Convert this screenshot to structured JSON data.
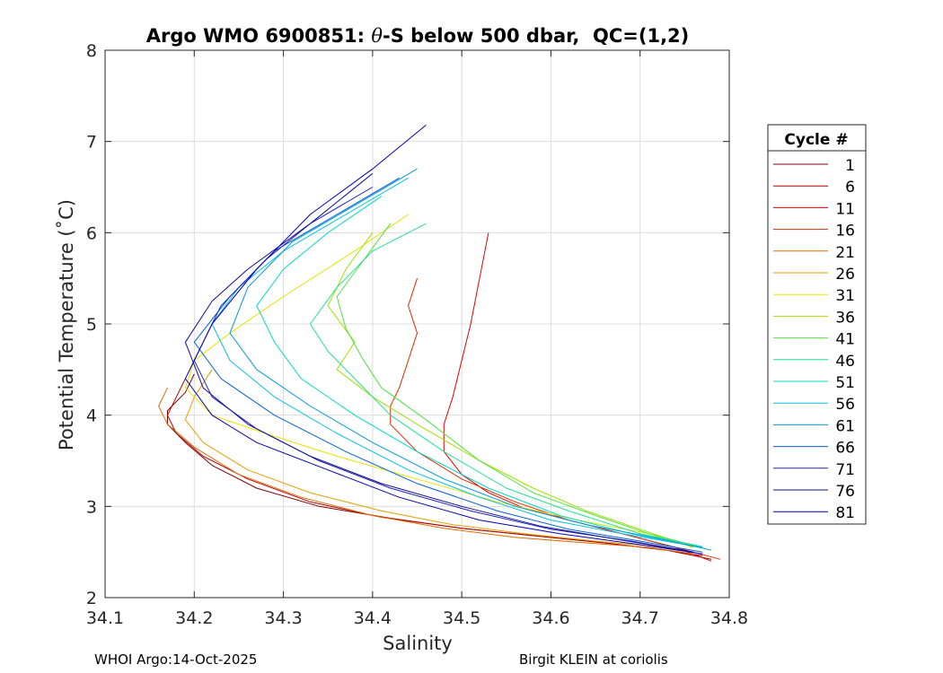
{
  "chart_data": {
    "type": "line",
    "title_prefix": "Argo WMO 6900851: ",
    "title_symbol": "θ",
    "title_suffix": "-S below 500 dbar,  QC=(1,2)",
    "xlabel": "Salinity",
    "ylabel": "Potential Temperature (˚C)",
    "xlim": [
      34.1,
      34.8
    ],
    "ylim": [
      2,
      8
    ],
    "xticks": [
      "34.1",
      "34.2",
      "34.3",
      "34.4",
      "34.5",
      "34.6",
      "34.7",
      "34.8"
    ],
    "yticks": [
      "2",
      "3",
      "4",
      "5",
      "6",
      "7",
      "8"
    ],
    "grid": true,
    "legend_title": "Cycle #",
    "legend_position": "right",
    "legend": [
      {
        "label": "1",
        "color": "#800000"
      },
      {
        "label": "6",
        "color": "#b40000"
      },
      {
        "label": "11",
        "color": "#e00000"
      },
      {
        "label": "16",
        "color": "#e02a00"
      },
      {
        "label": "21",
        "color": "#e06a00"
      },
      {
        "label": "26",
        "color": "#e0a000"
      },
      {
        "label": "31",
        "color": "#e8e000"
      },
      {
        "label": "36",
        "color": "#a0e000"
      },
      {
        "label": "41",
        "color": "#50e040"
      },
      {
        "label": "46",
        "color": "#20e090"
      },
      {
        "label": "51",
        "color": "#00d8c8"
      },
      {
        "label": "56",
        "color": "#00c0e8"
      },
      {
        "label": "61",
        "color": "#0098d8"
      },
      {
        "label": "66",
        "color": "#0060d8"
      },
      {
        "label": "71",
        "color": "#2020c0"
      },
      {
        "label": "76",
        "color": "#101090"
      },
      {
        "label": "81",
        "color": "#0000b8"
      }
    ],
    "series": [
      {
        "name": "1",
        "color": "#800000",
        "salinity": [
          34.2,
          34.19,
          34.17,
          34.17,
          34.19,
          34.22,
          34.27,
          34.34,
          34.42,
          34.5,
          34.58,
          34.66,
          34.73,
          34.77
        ],
        "temperature": [
          4.45,
          4.25,
          4.05,
          3.9,
          3.7,
          3.45,
          3.2,
          3.0,
          2.87,
          2.76,
          2.68,
          2.6,
          2.52,
          2.46
        ]
      },
      {
        "name": "6",
        "color": "#b40000",
        "salinity": [
          34.19,
          34.18,
          34.17,
          34.18,
          34.21,
          34.26,
          34.33,
          34.41,
          34.5,
          34.58,
          34.66,
          34.73,
          34.78
        ],
        "temperature": [
          4.4,
          4.2,
          4.0,
          3.8,
          3.55,
          3.3,
          3.05,
          2.88,
          2.76,
          2.68,
          2.6,
          2.52,
          2.42
        ]
      },
      {
        "name": "11",
        "color": "#e00000",
        "salinity": [
          34.53,
          34.52,
          34.51,
          34.5,
          34.49,
          34.48,
          34.48,
          34.5,
          34.53,
          34.57,
          34.62,
          34.68,
          34.74,
          34.78
        ],
        "temperature": [
          6.0,
          5.5,
          5.0,
          4.6,
          4.2,
          3.9,
          3.6,
          3.35,
          3.15,
          2.98,
          2.85,
          2.7,
          2.55,
          2.4
        ]
      },
      {
        "name": "16",
        "color": "#e02a00",
        "salinity": [
          34.45,
          34.44,
          34.45,
          34.44,
          34.43,
          34.42,
          34.42,
          34.45,
          34.5,
          34.56,
          34.62,
          34.68,
          34.74,
          34.79
        ],
        "temperature": [
          5.5,
          5.2,
          4.9,
          4.6,
          4.3,
          4.1,
          3.9,
          3.6,
          3.3,
          3.05,
          2.85,
          2.7,
          2.55,
          2.42
        ]
      },
      {
        "name": "21",
        "color": "#e06a00",
        "salinity": [
          34.17,
          34.16,
          34.17,
          34.2,
          34.25,
          34.32,
          34.4,
          34.48,
          34.56,
          34.64,
          34.71,
          34.76
        ],
        "temperature": [
          4.3,
          4.1,
          3.9,
          3.65,
          3.35,
          3.1,
          2.9,
          2.76,
          2.66,
          2.6,
          2.55,
          2.48
        ]
      },
      {
        "name": "26",
        "color": "#e0a000",
        "salinity": [
          34.22,
          34.2,
          34.19,
          34.21,
          34.26,
          34.33,
          34.41,
          34.49,
          34.57,
          34.65,
          34.72,
          34.76
        ],
        "temperature": [
          4.5,
          4.2,
          3.95,
          3.7,
          3.4,
          3.15,
          2.95,
          2.8,
          2.7,
          2.62,
          2.56,
          2.5
        ]
      },
      {
        "name": "31",
        "color": "#e8e000",
        "salinity": [
          34.44,
          34.38,
          34.3,
          34.24,
          34.2,
          34.19,
          34.22,
          34.28,
          34.36,
          34.45,
          34.54,
          34.63,
          34.71,
          34.76
        ],
        "temperature": [
          6.2,
          5.8,
          5.3,
          4.9,
          4.6,
          4.3,
          4.0,
          3.8,
          3.55,
          3.3,
          3.05,
          2.85,
          2.7,
          2.55
        ]
      },
      {
        "name": "36",
        "color": "#a0e000",
        "salinity": [
          34.4,
          34.37,
          34.35,
          34.38,
          34.36,
          34.4,
          34.45,
          34.52,
          34.58,
          34.64,
          34.7,
          34.76
        ],
        "temperature": [
          6.0,
          5.6,
          5.2,
          4.8,
          4.5,
          4.2,
          3.9,
          3.5,
          3.2,
          2.95,
          2.75,
          2.55
        ]
      },
      {
        "name": "41",
        "color": "#50e040",
        "salinity": [
          34.42,
          34.39,
          34.36,
          34.37,
          34.39,
          34.41,
          34.46,
          34.52,
          34.58,
          34.65,
          34.71,
          34.77
        ],
        "temperature": [
          6.1,
          5.7,
          5.3,
          4.95,
          4.6,
          4.3,
          3.95,
          3.5,
          3.15,
          2.9,
          2.7,
          2.55
        ]
      },
      {
        "name": "46",
        "color": "#20e090",
        "salinity": [
          34.46,
          34.4,
          34.36,
          34.33,
          34.35,
          34.38,
          34.42,
          34.48,
          34.55,
          34.62,
          34.7,
          34.77
        ],
        "temperature": [
          6.1,
          5.8,
          5.4,
          5.0,
          4.7,
          4.4,
          4.0,
          3.6,
          3.2,
          2.95,
          2.7,
          2.56
        ]
      },
      {
        "name": "51",
        "color": "#00d8c8",
        "salinity": [
          34.41,
          34.35,
          34.3,
          34.27,
          34.29,
          34.32,
          34.38,
          34.45,
          34.53,
          34.61,
          34.69,
          34.77
        ],
        "temperature": [
          6.4,
          6.0,
          5.6,
          5.2,
          4.8,
          4.4,
          4.0,
          3.6,
          3.2,
          2.9,
          2.7,
          2.55
        ]
      },
      {
        "name": "56",
        "color": "#00c0e8",
        "salinity": [
          34.44,
          34.37,
          34.3,
          34.25,
          34.22,
          34.24,
          34.29,
          34.36,
          34.44,
          34.52,
          34.6,
          34.68,
          34.77
        ],
        "temperature": [
          6.6,
          6.2,
          5.8,
          5.4,
          5.0,
          4.6,
          4.2,
          3.8,
          3.4,
          3.1,
          2.85,
          2.7,
          2.55
        ]
      },
      {
        "name": "61",
        "color": "#0098d8",
        "salinity": [
          34.45,
          34.38,
          34.31,
          34.26,
          34.24,
          34.27,
          34.33,
          34.4,
          34.48,
          34.56,
          34.64,
          34.72,
          34.78
        ],
        "temperature": [
          6.7,
          6.3,
          5.9,
          5.4,
          4.9,
          4.5,
          4.1,
          3.7,
          3.3,
          3.0,
          2.8,
          2.65,
          2.52
        ]
      },
      {
        "name": "66",
        "color": "#0060d8",
        "salinity": [
          34.43,
          34.36,
          34.29,
          34.24,
          34.2,
          34.23,
          34.29,
          34.37,
          34.45,
          34.54,
          34.62,
          34.7,
          34.77
        ],
        "temperature": [
          6.6,
          6.2,
          5.8,
          5.3,
          4.8,
          4.4,
          4.0,
          3.6,
          3.25,
          2.95,
          2.75,
          2.62,
          2.5
        ]
      },
      {
        "name": "71",
        "color": "#2020c0",
        "salinity": [
          34.4,
          34.33,
          34.28,
          34.23,
          34.2,
          34.22,
          34.27,
          34.34,
          34.42,
          34.51,
          34.6,
          34.69,
          34.76
        ],
        "temperature": [
          6.5,
          6.1,
          5.7,
          5.2,
          4.6,
          4.2,
          3.85,
          3.5,
          3.2,
          2.95,
          2.75,
          2.62,
          2.5
        ]
      },
      {
        "name": "76",
        "color": "#101090",
        "salinity": [
          34.4,
          34.33,
          34.26,
          34.22,
          34.19,
          34.21,
          34.26,
          34.33,
          34.41,
          34.5,
          34.59,
          34.68,
          34.76
        ],
        "temperature": [
          6.65,
          6.1,
          5.6,
          5.25,
          4.8,
          4.3,
          3.9,
          3.55,
          3.25,
          3.0,
          2.78,
          2.63,
          2.5
        ]
      },
      {
        "name": "81",
        "color": "#0000b8",
        "salinity": [
          34.46,
          34.4,
          34.33,
          34.27,
          34.22,
          34.19,
          34.22,
          34.27,
          34.35,
          34.43,
          34.52,
          34.61,
          34.7,
          34.77
        ],
        "temperature": [
          7.18,
          6.7,
          6.2,
          5.6,
          5.0,
          4.4,
          4.0,
          3.7,
          3.4,
          3.1,
          2.85,
          2.7,
          2.58,
          2.48
        ]
      }
    ]
  },
  "footer": {
    "left": "WHOI Argo:14-Oct-2025",
    "right": "Birgit KLEIN at coriolis"
  }
}
